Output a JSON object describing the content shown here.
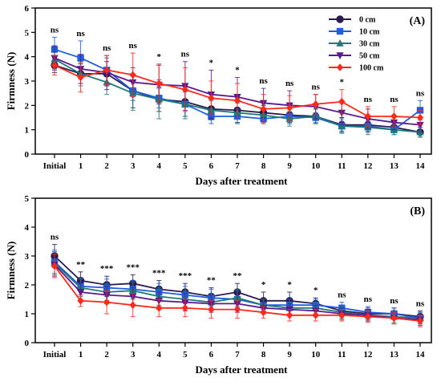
{
  "chart_data": [
    {
      "type": "line",
      "panel_label": "(A)",
      "xlabel": "Days after treatment",
      "ylabel": "Firmness (N)",
      "categories": [
        "Initial",
        "1",
        "2",
        "3",
        "4",
        "5",
        "6",
        "7",
        "8",
        "9",
        "10",
        "11",
        "12",
        "13",
        "14"
      ],
      "ylim": [
        0,
        6
      ],
      "yticks": [
        0,
        1,
        2,
        3,
        4,
        5,
        6
      ],
      "legend_position": "top-right",
      "significance": [
        "ns",
        "ns",
        "ns",
        "ns",
        "*",
        "ns",
        "*",
        "*",
        "ns",
        "ns",
        "ns",
        "*",
        "ns",
        "ns",
        "ns"
      ],
      "series": [
        {
          "name": "0 cm",
          "color": "#2a1a4e",
          "marker": "circle",
          "values": [
            3.65,
            3.3,
            3.3,
            2.6,
            2.25,
            2.15,
            1.85,
            1.8,
            1.7,
            1.6,
            1.55,
            1.2,
            1.2,
            1.1,
            0.9
          ],
          "errors": [
            0.3,
            0.4,
            0.5,
            0.7,
            0.5,
            0.6,
            0.4,
            0.5,
            0.3,
            0.3,
            0.3,
            0.3,
            0.3,
            0.2,
            0.2
          ]
        },
        {
          "name": "10 cm",
          "color": "#1f5ce0",
          "marker": "square",
          "values": [
            4.3,
            3.95,
            3.45,
            2.6,
            2.3,
            2.05,
            1.55,
            1.55,
            1.45,
            1.55,
            1.5,
            1.15,
            1.15,
            1.0,
            1.8
          ],
          "errors": [
            0.5,
            0.7,
            0.5,
            0.4,
            0.4,
            0.5,
            0.3,
            0.3,
            0.2,
            0.3,
            0.2,
            0.2,
            0.2,
            0.2,
            0.4
          ]
        },
        {
          "name": "30 cm",
          "color": "#1e7a78",
          "marker": "triangle-up",
          "values": [
            3.9,
            3.3,
            2.95,
            2.5,
            2.25,
            2.05,
            1.8,
            1.7,
            1.6,
            1.45,
            1.55,
            1.15,
            1.1,
            1.0,
            0.9
          ],
          "errors": [
            0.4,
            0.5,
            0.5,
            0.7,
            0.8,
            0.6,
            0.4,
            0.4,
            0.3,
            0.3,
            0.3,
            0.3,
            0.3,
            0.2,
            0.2
          ]
        },
        {
          "name": "50 cm",
          "color": "#5a1a8e",
          "marker": "triangle-down",
          "values": [
            3.95,
            3.5,
            3.35,
            2.95,
            2.85,
            2.8,
            2.45,
            2.35,
            2.1,
            2.0,
            1.95,
            1.7,
            1.45,
            1.3,
            1.2
          ],
          "errors": [
            0.5,
            0.6,
            0.7,
            0.6,
            0.8,
            1.0,
            1.0,
            0.8,
            0.6,
            0.6,
            0.5,
            0.5,
            0.4,
            0.3,
            0.3
          ]
        },
        {
          "name": "100 cm",
          "color": "#ff2a1a",
          "marker": "diamond",
          "values": [
            3.65,
            3.15,
            3.45,
            3.25,
            2.9,
            2.65,
            2.3,
            2.2,
            1.85,
            1.9,
            2.05,
            2.15,
            1.55,
            1.55,
            1.5
          ],
          "errors": [
            0.4,
            0.6,
            0.6,
            0.9,
            0.8,
            0.9,
            0.7,
            0.7,
            0.6,
            0.5,
            0.4,
            0.5,
            0.4,
            0.4,
            0.3
          ]
        }
      ]
    },
    {
      "type": "line",
      "panel_label": "(B)",
      "xlabel": "Days after treatment",
      "ylabel": "Firmness (N)",
      "categories": [
        "Initial",
        "1",
        "2",
        "3",
        "4",
        "5",
        "6",
        "7",
        "8",
        "9",
        "10",
        "11",
        "12",
        "13",
        "14"
      ],
      "ylim": [
        0,
        5
      ],
      "yticks": [
        0,
        1,
        2,
        3,
        4,
        5
      ],
      "significance": [
        "ns",
        "**",
        "***",
        "***",
        "***",
        "***",
        "**",
        "**",
        "*",
        "*",
        "*",
        "ns",
        "ns",
        "ns",
        "ns"
      ],
      "series": [
        {
          "name": "0 cm",
          "color": "#2a1a4e",
          "marker": "circle",
          "values": [
            3.0,
            2.15,
            2.0,
            2.05,
            1.85,
            1.75,
            1.6,
            1.75,
            1.45,
            1.45,
            1.35,
            1.1,
            1.0,
            1.0,
            0.9
          ],
          "errors": [
            0.4,
            0.3,
            0.3,
            0.3,
            0.3,
            0.3,
            0.3,
            0.3,
            0.3,
            0.3,
            0.2,
            0.2,
            0.2,
            0.2,
            0.2
          ]
        },
        {
          "name": "10 cm",
          "color": "#1f5ce0",
          "marker": "square",
          "values": [
            2.8,
            1.95,
            1.9,
            1.85,
            1.75,
            1.65,
            1.55,
            1.5,
            1.3,
            1.3,
            1.3,
            1.2,
            1.05,
            1.0,
            0.85
          ],
          "errors": [
            0.4,
            0.3,
            0.3,
            0.3,
            0.3,
            0.3,
            0.3,
            0.3,
            0.2,
            0.2,
            0.2,
            0.2,
            0.2,
            0.2,
            0.2
          ]
        },
        {
          "name": "30 cm",
          "color": "#1e7a78",
          "marker": "triangle-up",
          "values": [
            2.75,
            1.9,
            1.75,
            1.8,
            1.6,
            1.5,
            1.4,
            1.55,
            1.3,
            1.2,
            1.2,
            1.05,
            0.95,
            0.9,
            0.85
          ],
          "errors": [
            0.4,
            0.3,
            0.3,
            0.3,
            0.3,
            0.3,
            0.3,
            0.3,
            0.2,
            0.2,
            0.2,
            0.2,
            0.2,
            0.2,
            0.2
          ]
        },
        {
          "name": "50 cm",
          "color": "#5a1a8e",
          "marker": "triangle-down",
          "values": [
            2.7,
            1.75,
            1.65,
            1.6,
            1.45,
            1.4,
            1.35,
            1.35,
            1.2,
            1.15,
            1.1,
            1.0,
            0.95,
            0.85,
            0.8
          ],
          "errors": [
            0.4,
            0.3,
            0.3,
            0.3,
            0.3,
            0.3,
            0.3,
            0.3,
            0.2,
            0.2,
            0.2,
            0.2,
            0.2,
            0.2,
            0.2
          ]
        },
        {
          "name": "100 cm",
          "color": "#ff2a1a",
          "marker": "diamond",
          "values": [
            2.65,
            1.45,
            1.4,
            1.3,
            1.2,
            1.2,
            1.15,
            1.15,
            1.05,
            0.95,
            0.95,
            0.95,
            0.9,
            0.85,
            0.75
          ],
          "errors": [
            0.4,
            0.2,
            0.4,
            0.4,
            0.3,
            0.3,
            0.3,
            0.3,
            0.2,
            0.2,
            0.2,
            0.2,
            0.2,
            0.2,
            0.2
          ]
        }
      ]
    }
  ]
}
